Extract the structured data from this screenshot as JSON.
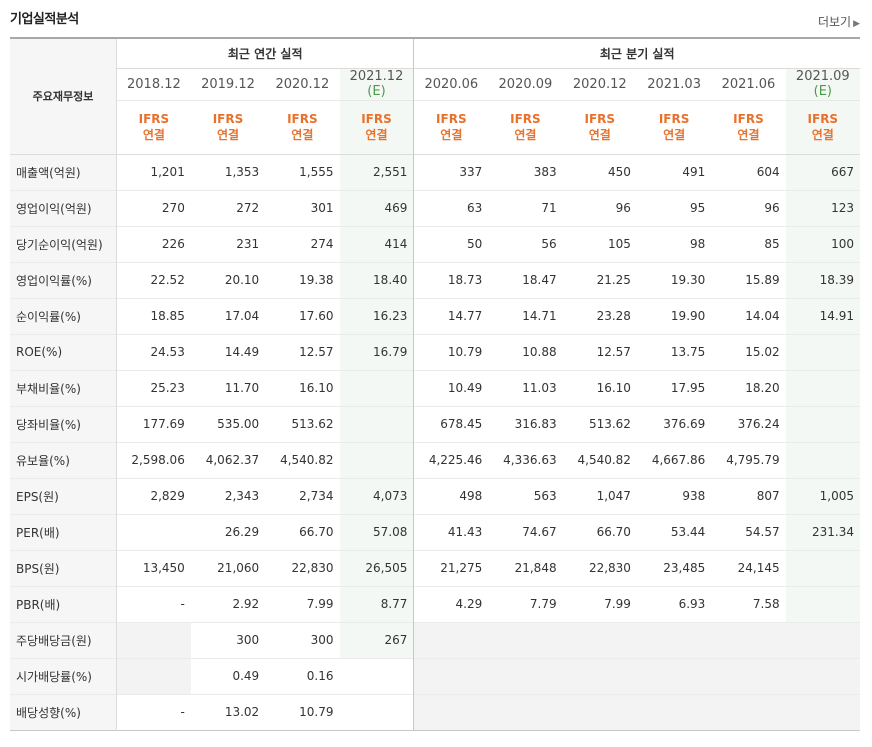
{
  "section": {
    "title": "기업실적분석",
    "more_label": "더보기"
  },
  "header": {
    "label": "주요재무정보",
    "annual_title": "최근 연간 실적",
    "quarter_title": "최근 분기 실적"
  },
  "periods": [
    {
      "p": "2018.12",
      "est": "",
      "ifrs1": "IFRS",
      "ifrs2": "연결"
    },
    {
      "p": "2019.12",
      "est": "",
      "ifrs1": "IFRS",
      "ifrs2": "연결"
    },
    {
      "p": "2020.12",
      "est": "",
      "ifrs1": "IFRS",
      "ifrs2": "연결"
    },
    {
      "p": "2021.12",
      "est": "(E)",
      "ifrs1": "IFRS",
      "ifrs2": "연결"
    },
    {
      "p": "2020.06",
      "est": "",
      "ifrs1": "IFRS",
      "ifrs2": "연결"
    },
    {
      "p": "2020.09",
      "est": "",
      "ifrs1": "IFRS",
      "ifrs2": "연결"
    },
    {
      "p": "2020.12",
      "est": "",
      "ifrs1": "IFRS",
      "ifrs2": "연결"
    },
    {
      "p": "2021.03",
      "est": "",
      "ifrs1": "IFRS",
      "ifrs2": "연결"
    },
    {
      "p": "2021.06",
      "est": "",
      "ifrs1": "IFRS",
      "ifrs2": "연결"
    },
    {
      "p": "2021.09",
      "est": "(E)",
      "ifrs1": "IFRS",
      "ifrs2": "연결"
    }
  ],
  "rows": [
    {
      "label": "매출액(억원)",
      "v": [
        "1,201",
        "1,353",
        "1,555",
        "2,551",
        "337",
        "383",
        "450",
        "491",
        "604",
        "667"
      ]
    },
    {
      "label": "영업이익(억원)",
      "v": [
        "270",
        "272",
        "301",
        "469",
        "63",
        "71",
        "96",
        "95",
        "96",
        "123"
      ]
    },
    {
      "label": "당기순이익(억원)",
      "v": [
        "226",
        "231",
        "274",
        "414",
        "50",
        "56",
        "105",
        "98",
        "85",
        "100"
      ]
    },
    {
      "label": "영업이익률(%)",
      "v": [
        "22.52",
        "20.10",
        "19.38",
        "18.40",
        "18.73",
        "18.47",
        "21.25",
        "19.30",
        "15.89",
        "18.39"
      ]
    },
    {
      "label": "순이익률(%)",
      "v": [
        "18.85",
        "17.04",
        "17.60",
        "16.23",
        "14.77",
        "14.71",
        "23.28",
        "19.90",
        "14.04",
        "14.91"
      ]
    },
    {
      "label": "ROE(%)",
      "v": [
        "24.53",
        "14.49",
        "12.57",
        "16.79",
        "10.79",
        "10.88",
        "12.57",
        "13.75",
        "15.02",
        ""
      ]
    },
    {
      "label": "부채비율(%)",
      "v": [
        "25.23",
        "11.70",
        "16.10",
        "",
        "10.49",
        "11.03",
        "16.10",
        "17.95",
        "18.20",
        ""
      ]
    },
    {
      "label": "당좌비율(%)",
      "v": [
        "177.69",
        "535.00",
        "513.62",
        "",
        "678.45",
        "316.83",
        "513.62",
        "376.69",
        "376.24",
        ""
      ]
    },
    {
      "label": "유보율(%)",
      "v": [
        "2,598.06",
        "4,062.37",
        "4,540.82",
        "",
        "4,225.46",
        "4,336.63",
        "4,540.82",
        "4,667.86",
        "4,795.79",
        ""
      ]
    },
    {
      "label": "EPS(원)",
      "v": [
        "2,829",
        "2,343",
        "2,734",
        "4,073",
        "498",
        "563",
        "1,047",
        "938",
        "807",
        "1,005"
      ]
    },
    {
      "label": "PER(배)",
      "v": [
        "",
        "26.29",
        "66.70",
        "57.08",
        "41.43",
        "74.67",
        "66.70",
        "53.44",
        "54.57",
        "231.34"
      ]
    },
    {
      "label": "BPS(원)",
      "v": [
        "13,450",
        "21,060",
        "22,830",
        "26,505",
        "21,275",
        "21,848",
        "22,830",
        "23,485",
        "24,145",
        ""
      ]
    },
    {
      "label": "PBR(배)",
      "v": [
        "-",
        "2.92",
        "7.99",
        "8.77",
        "4.29",
        "7.79",
        "7.99",
        "6.93",
        "7.58",
        ""
      ]
    },
    {
      "label": "주당배당금(원)",
      "v": [
        "",
        "300",
        "300",
        "267",
        "",
        "",
        "",
        "",
        "",
        ""
      ]
    },
    {
      "label": "시가배당률(%)",
      "v": [
        "",
        "0.49",
        "0.16",
        "",
        "",
        "",
        "",
        "",
        "",
        ""
      ]
    },
    {
      "label": "배당성향(%)",
      "v": [
        "-",
        "13.02",
        "10.79",
        "",
        "",
        "",
        "",
        "",
        "",
        ""
      ]
    }
  ]
}
